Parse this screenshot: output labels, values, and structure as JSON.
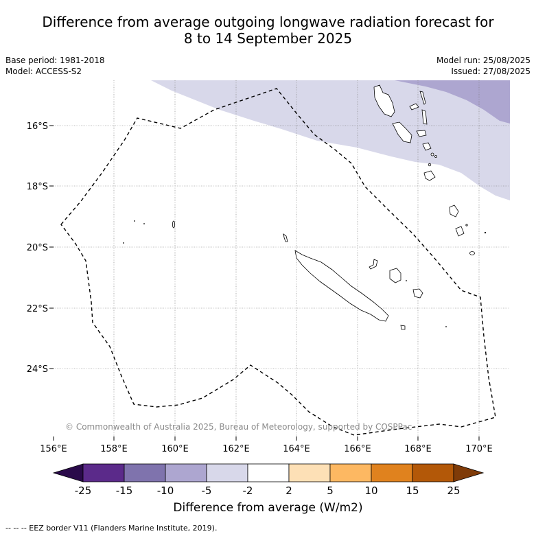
{
  "title_line1": "Difference from average outgoing longwave radiation forecast for",
  "title_line2": "8 to 14 September 2025",
  "meta_left": [
    "Base period: 1981-2018",
    "Model: ACCESS-S2"
  ],
  "meta_right": [
    "Model run: 25/08/2025",
    "Issued: 27/08/2025"
  ],
  "copyright": "© Commonwealth of Australia 2025, Bureau of Meteorology, supported by COSPPac",
  "lat_labels": [
    "16°S",
    "18°S",
    "20°S",
    "22°S",
    "24°S"
  ],
  "lon_labels": [
    "156°E",
    "158°E",
    "160°E",
    "162°E",
    "164°E",
    "166°E",
    "168°E",
    "170°E"
  ],
  "colorbar": {
    "title": "Difference from average (W/m2)",
    "tick_labels": [
      "-25",
      "-15",
      "-10",
      "-5",
      "-2",
      "2",
      "5",
      "10",
      "15",
      "25"
    ],
    "colors": [
      "#2a0a4a",
      "#5b2a8a",
      "#7f73ad",
      "#ada6d0",
      "#d8d8ea",
      "#ffffff",
      "#fde0b6",
      "#fdb862",
      "#e0821e",
      "#b35808",
      "#7f3b08"
    ]
  },
  "footnote": "--  --  -- EEZ border V11 (Flanders Marine Institute, 2019)."
}
